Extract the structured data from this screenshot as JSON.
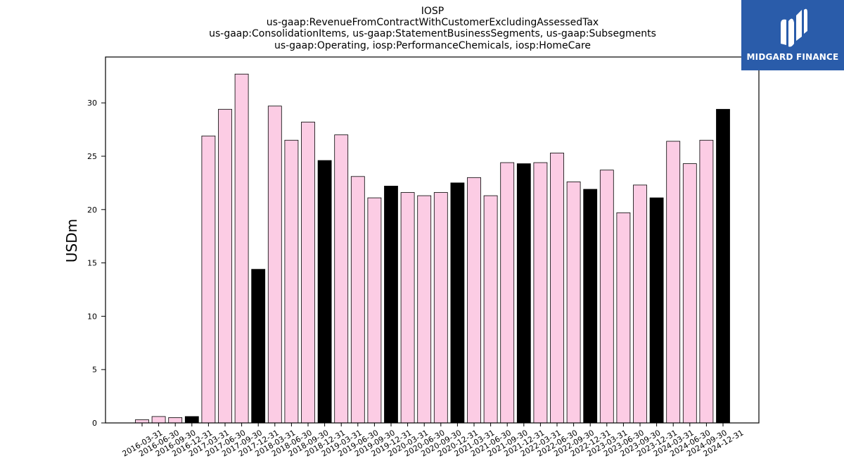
{
  "brand": {
    "name": "MIDGARD FINANCE",
    "logo_icon": "midgard-m-icon",
    "color": "#2a5caa"
  },
  "chart_data": {
    "type": "bar",
    "title_lines": [
      "IOSP",
      "us-gaap:RevenueFromContractWithCustomerExcludingAssessedTax",
      "us-gaap:ConsolidationItems, us-gaap:StatementBusinessSegments, us-gaap:Subsegments",
      "us-gaap:Operating, iosp:PerformanceChemicals, iosp:HomeCare"
    ],
    "xlabel": "",
    "ylabel": "USDm",
    "ylim": [
      0,
      34.3
    ],
    "yticks": [
      0,
      5,
      10,
      15,
      20,
      25,
      30
    ],
    "grid": false,
    "colors": {
      "quarter": "#fccce4",
      "year_end": "#000000",
      "edge": "#000000"
    },
    "categories": [
      "2016-03-31",
      "2016-06-30",
      "2016-09-30",
      "2016-12-31",
      "2017-03-31",
      "2017-06-30",
      "2017-09-30",
      "2017-12-31",
      "2018-03-31",
      "2018-06-30",
      "2018-09-30",
      "2018-12-31",
      "2019-03-31",
      "2019-06-30",
      "2019-09-30",
      "2019-12-31",
      "2020-03-31",
      "2020-06-30",
      "2020-09-30",
      "2020-12-31",
      "2021-03-31",
      "2021-06-30",
      "2021-09-30",
      "2021-12-31",
      "2022-03-31",
      "2022-06-30",
      "2022-09-30",
      "2022-12-31",
      "2023-03-31",
      "2023-06-30",
      "2023-09-30",
      "2023-12-31",
      "2024-03-31",
      "2024-06-30",
      "2024-09-30",
      "2024-12-31"
    ],
    "values": [
      0.3,
      0.6,
      0.5,
      0.6,
      26.9,
      29.4,
      32.7,
      14.4,
      29.7,
      26.5,
      28.2,
      24.6,
      27.0,
      23.1,
      21.1,
      22.2,
      21.6,
      21.3,
      21.6,
      22.5,
      23.0,
      21.3,
      24.4,
      24.3,
      24.4,
      25.3,
      22.6,
      21.9,
      23.7,
      19.7,
      22.3,
      21.1,
      26.4,
      24.3,
      26.5,
      29.4
    ],
    "highlight": [
      false,
      false,
      false,
      true,
      false,
      false,
      false,
      true,
      false,
      false,
      false,
      true,
      false,
      false,
      false,
      true,
      false,
      false,
      false,
      true,
      false,
      false,
      false,
      true,
      false,
      false,
      false,
      true,
      false,
      false,
      false,
      true,
      false,
      false,
      false,
      true
    ]
  }
}
